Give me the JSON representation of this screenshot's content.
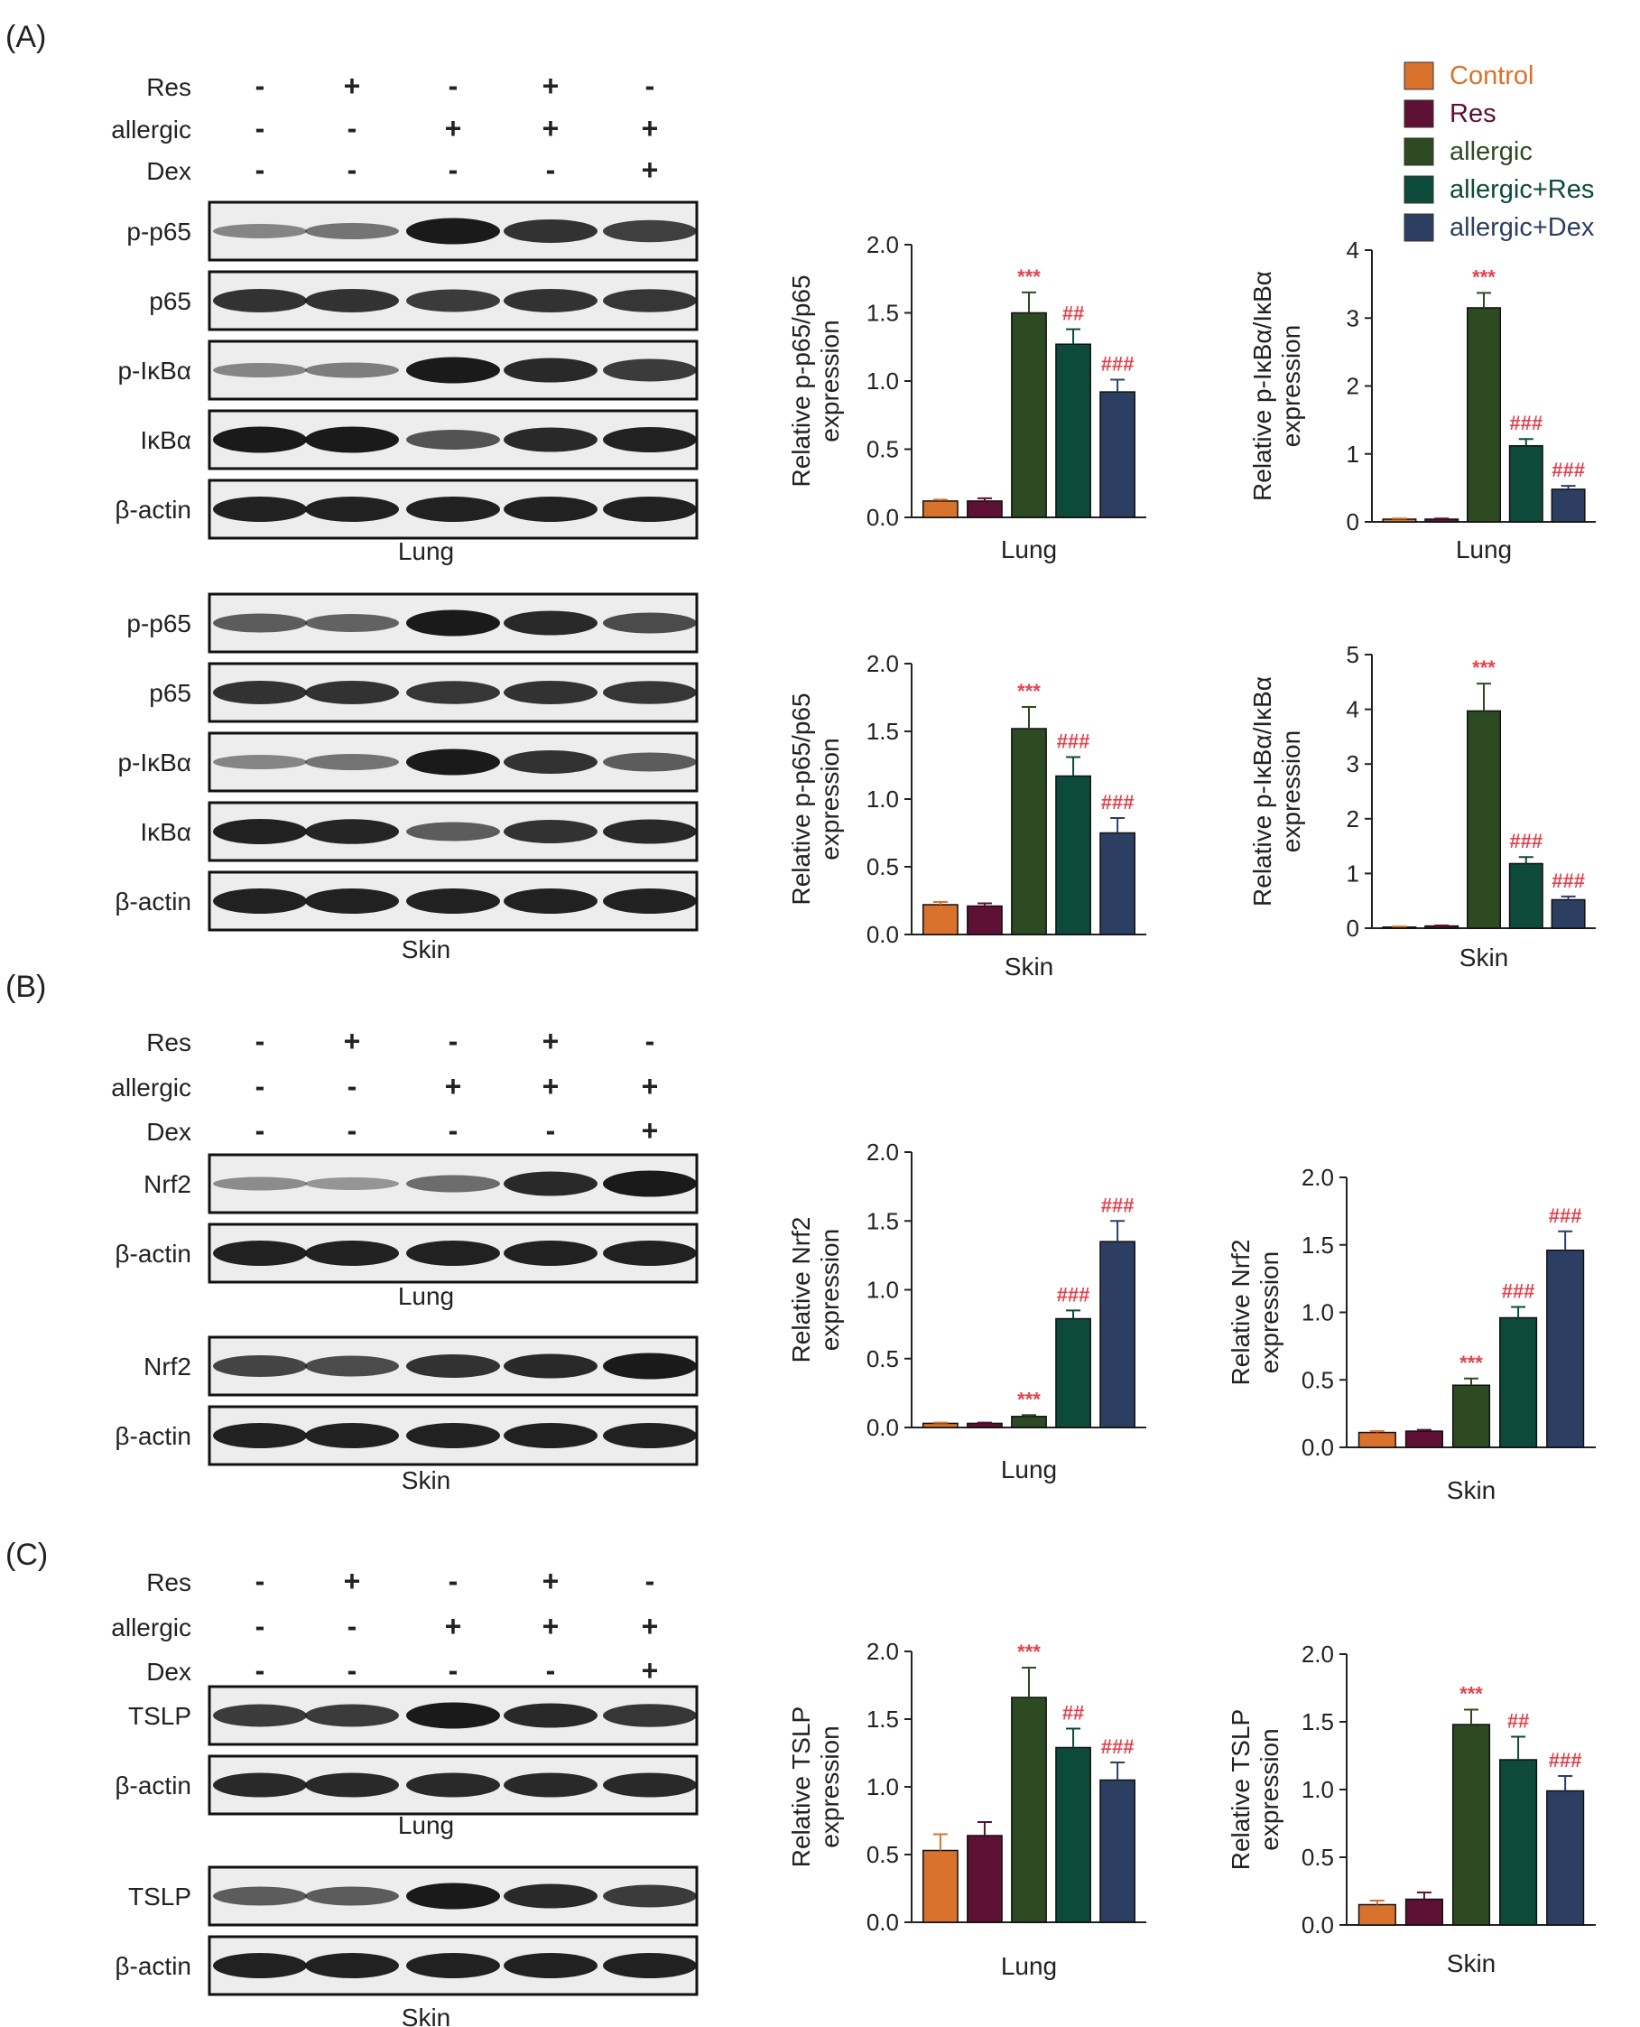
{
  "panels": [
    {
      "letter": "(A)"
    },
    {
      "letter": "(B)"
    },
    {
      "letter": "(C)"
    }
  ],
  "colors": {
    "Control": "#d9722c",
    "Res": "#5e1035",
    "allergic": "#2e4a22",
    "allergic+Res": "#0d4a3a",
    "allergic+Dex": "#2c3f63"
  },
  "legend": {
    "items": [
      {
        "label": "Control",
        "color": "#d9722c"
      },
      {
        "label": "Res",
        "color": "#5e1035"
      },
      {
        "label": "allergic",
        "color": "#2e4a22"
      },
      {
        "label": "allergic+Res",
        "color": "#0d4a3a"
      },
      {
        "label": "allergic+Dex",
        "color": "#2c3f63"
      }
    ]
  },
  "treatments": {
    "A": {
      "rows": [
        {
          "label": "Res",
          "signs": [
            "-",
            "+",
            "-",
            "+",
            "-"
          ]
        },
        {
          "label": "allergic",
          "signs": [
            "-",
            "-",
            "+",
            "+",
            "+"
          ]
        },
        {
          "label": "Dex",
          "signs": [
            "-",
            "-",
            "-",
            "-",
            "+"
          ]
        }
      ]
    },
    "B": {
      "rows": [
        {
          "label": "Res",
          "signs": [
            "-",
            "+",
            "-",
            "+",
            "-"
          ]
        },
        {
          "label": "allergic",
          "signs": [
            "-",
            "-",
            "+",
            "+",
            "+"
          ]
        },
        {
          "label": "Dex",
          "signs": [
            "-",
            "-",
            "-",
            "-",
            "+"
          ]
        }
      ]
    },
    "C": {
      "rows": [
        {
          "label": "Res",
          "signs": [
            "-",
            "+",
            "-",
            "+",
            "-"
          ]
        },
        {
          "label": "allergic",
          "signs": [
            "-",
            "-",
            "+",
            "+",
            "+"
          ]
        },
        {
          "label": "Dex",
          "signs": [
            "-",
            "-",
            "-",
            "-",
            "+"
          ]
        }
      ]
    }
  },
  "blots": [
    {
      "tissue": "Lung",
      "bands": [
        {
          "label": "p-p65",
          "intensity": [
            0.3,
            0.4,
            0.95,
            0.8,
            0.72
          ]
        },
        {
          "label": "p65",
          "intensity": [
            0.8,
            0.8,
            0.75,
            0.8,
            0.78
          ]
        },
        {
          "label": "p-IκBα",
          "intensity": [
            0.3,
            0.35,
            0.95,
            0.85,
            0.75
          ]
        },
        {
          "label": "IκBα",
          "intensity": [
            0.95,
            0.95,
            0.6,
            0.85,
            0.9
          ]
        },
        {
          "label": "β-actin",
          "intensity": [
            0.9,
            0.9,
            0.9,
            0.9,
            0.9
          ]
        }
      ]
    },
    {
      "tissue": "Skin",
      "bands": [
        {
          "label": "p-p65",
          "intensity": [
            0.55,
            0.5,
            0.95,
            0.85,
            0.65
          ]
        },
        {
          "label": "p65",
          "intensity": [
            0.8,
            0.8,
            0.78,
            0.8,
            0.78
          ]
        },
        {
          "label": "p-IκBα",
          "intensity": [
            0.3,
            0.4,
            0.95,
            0.8,
            0.55
          ]
        },
        {
          "label": "IκBα",
          "intensity": [
            0.9,
            0.88,
            0.55,
            0.8,
            0.85
          ]
        },
        {
          "label": "β-actin",
          "intensity": [
            0.9,
            0.9,
            0.9,
            0.9,
            0.9
          ]
        }
      ]
    },
    {
      "tissue": "Lung",
      "bands": [
        {
          "label": "Nrf2",
          "intensity": [
            0.25,
            0.2,
            0.45,
            0.85,
            0.95
          ]
        },
        {
          "label": "β-actin",
          "intensity": [
            0.9,
            0.9,
            0.9,
            0.9,
            0.9
          ]
        }
      ]
    },
    {
      "tissue": "Skin",
      "bands": [
        {
          "label": "Nrf2",
          "intensity": [
            0.7,
            0.65,
            0.8,
            0.85,
            0.95
          ]
        },
        {
          "label": "β-actin",
          "intensity": [
            0.9,
            0.9,
            0.9,
            0.9,
            0.9
          ]
        }
      ]
    },
    {
      "tissue": "Lung",
      "bands": [
        {
          "label": "TSLP",
          "intensity": [
            0.75,
            0.75,
            0.95,
            0.85,
            0.78
          ]
        },
        {
          "label": "β-actin",
          "intensity": [
            0.85,
            0.85,
            0.85,
            0.85,
            0.85
          ]
        }
      ]
    },
    {
      "tissue": "Skin",
      "bands": [
        {
          "label": "TSLP",
          "intensity": [
            0.55,
            0.55,
            0.95,
            0.85,
            0.75
          ]
        },
        {
          "label": "β-actin",
          "intensity": [
            0.9,
            0.9,
            0.9,
            0.9,
            0.9
          ]
        }
      ]
    }
  ],
  "chart_data": [
    {
      "type": "bar",
      "ylabel_lines": [
        "Relative p-p65/p65",
        "expression"
      ],
      "xlabel": "Lung",
      "categories": [
        "Control",
        "Res",
        "allergic",
        "allergic+Res",
        "allergic+Dex"
      ],
      "values": [
        0.12,
        0.12,
        1.5,
        1.27,
        0.92
      ],
      "errors": [
        0.01,
        0.02,
        0.15,
        0.11,
        0.09
      ],
      "annotations": [
        "",
        "",
        "***",
        "##",
        "###"
      ],
      "yticks": [
        "0.0",
        "0.5",
        "1.0",
        "1.5",
        "2.0"
      ],
      "ylim": [
        0,
        2
      ]
    },
    {
      "type": "bar",
      "ylabel_lines": [
        "Relative p-IκBα/IκBα",
        "expression"
      ],
      "xlabel": "Lung",
      "categories": [
        "Control",
        "Res",
        "allergic",
        "allergic+Res",
        "allergic+Dex"
      ],
      "values": [
        0.04,
        0.04,
        3.15,
        1.12,
        0.48
      ],
      "errors": [
        0.01,
        0.01,
        0.22,
        0.1,
        0.05
      ],
      "annotations": [
        "",
        "",
        "***",
        "###",
        "###"
      ],
      "yticks": [
        "0",
        "1",
        "2",
        "3",
        "4"
      ],
      "ylim": [
        0,
        4
      ]
    },
    {
      "type": "bar",
      "ylabel_lines": [
        "Relative p-p65/p65",
        "expression"
      ],
      "xlabel": "Skin",
      "categories": [
        "Control",
        "Res",
        "allergic",
        "allergic+Res",
        "allergic+Dex"
      ],
      "values": [
        0.22,
        0.21,
        1.52,
        1.17,
        0.75
      ],
      "errors": [
        0.02,
        0.02,
        0.16,
        0.14,
        0.11
      ],
      "annotations": [
        "",
        "",
        "***",
        "###",
        "###"
      ],
      "yticks": [
        "0.0",
        "0.5",
        "1.0",
        "1.5",
        "2.0"
      ],
      "ylim": [
        0,
        2
      ]
    },
    {
      "type": "bar",
      "ylabel_lines": [
        "Relative p-IκBα/IκBα",
        "expression"
      ],
      "xlabel": "Skin",
      "categories": [
        "Control",
        "Res",
        "allergic",
        "allergic+Res",
        "allergic+Dex"
      ],
      "values": [
        0.02,
        0.04,
        3.97,
        1.18,
        0.52
      ],
      "errors": [
        0.01,
        0.01,
        0.5,
        0.12,
        0.06
      ],
      "annotations": [
        "",
        "",
        "***",
        "###",
        "###"
      ],
      "yticks": [
        "0",
        "1",
        "2",
        "3",
        "4",
        "5"
      ],
      "ylim": [
        0,
        5
      ]
    },
    {
      "type": "bar",
      "ylabel_lines": [
        "Relative Nrf2",
        "expression"
      ],
      "xlabel": "Lung",
      "categories": [
        "Control",
        "Res",
        "allergic",
        "allergic+Res",
        "allergic+Dex"
      ],
      "values": [
        0.03,
        0.03,
        0.08,
        0.79,
        1.35
      ],
      "errors": [
        0.005,
        0.005,
        0.01,
        0.06,
        0.15
      ],
      "annotations": [
        "",
        "",
        "***",
        "###",
        "###"
      ],
      "yticks": [
        "0.0",
        "0.5",
        "1.0",
        "1.5",
        "2.0"
      ],
      "ylim": [
        0,
        2
      ]
    },
    {
      "type": "bar",
      "ylabel_lines": [
        "Relative Nrf2",
        "expression"
      ],
      "xlabel": "Skin",
      "categories": [
        "Control",
        "Res",
        "allergic",
        "allergic+Res",
        "allergic+Dex"
      ],
      "values": [
        0.11,
        0.12,
        0.46,
        0.96,
        1.46
      ],
      "errors": [
        0.01,
        0.01,
        0.05,
        0.08,
        0.14
      ],
      "annotations": [
        "",
        "",
        "***",
        "###",
        "###"
      ],
      "yticks": [
        "0.0",
        "0.5",
        "1.0",
        "1.5",
        "2.0"
      ],
      "ylim": [
        0,
        2
      ]
    },
    {
      "type": "bar",
      "ylabel_lines": [
        "Relative TSLP",
        "expression"
      ],
      "xlabel": "Lung",
      "categories": [
        "Control",
        "Res",
        "allergic",
        "allergic+Res",
        "allergic+Dex"
      ],
      "values": [
        0.53,
        0.64,
        1.66,
        1.29,
        1.05
      ],
      "errors": [
        0.12,
        0.1,
        0.22,
        0.14,
        0.13
      ],
      "annotations": [
        "",
        "",
        "***",
        "##",
        "###"
      ],
      "yticks": [
        "0.0",
        "0.5",
        "1.0",
        "1.5",
        "2.0"
      ],
      "ylim": [
        0,
        2
      ]
    },
    {
      "type": "bar",
      "ylabel_lines": [
        "Relative TSLP",
        "expression"
      ],
      "xlabel": "Skin",
      "categories": [
        "Control",
        "Res",
        "allergic",
        "allergic+Res",
        "allergic+Dex"
      ],
      "values": [
        0.15,
        0.19,
        1.48,
        1.22,
        0.99
      ],
      "errors": [
        0.03,
        0.05,
        0.11,
        0.17,
        0.11
      ],
      "annotations": [
        "",
        "",
        "***",
        "##",
        "###"
      ],
      "yticks": [
        "0.0",
        "0.5",
        "1.0",
        "1.5",
        "2.0"
      ],
      "ylim": [
        0,
        2
      ]
    }
  ]
}
